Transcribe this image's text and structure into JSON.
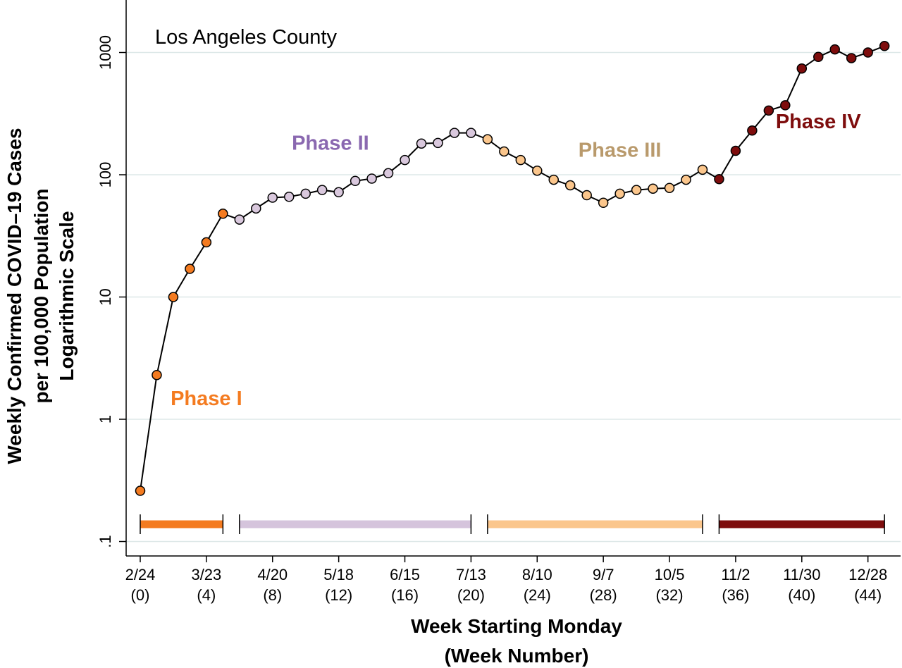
{
  "chart_data": {
    "type": "line",
    "title": "Los Angeles County",
    "xlabel": "Week Starting Monday",
    "xlabel_sub": "(Week Number)",
    "ylabel": [
      "Weekly Confirmed COVID–19 Cases",
      "per 100,000 Population",
      "Logarithmic Scale"
    ],
    "y_scale": "log",
    "ylim": [
      0.1,
      1900
    ],
    "xlim": [
      -0.5,
      46
    ],
    "grid": "horizontal",
    "line_color": "#000000",
    "y_ticks": [
      {
        "value": 0.1,
        "label": ".1"
      },
      {
        "value": 1,
        "label": "1"
      },
      {
        "value": 10,
        "label": "10"
      },
      {
        "value": 100,
        "label": "100"
      },
      {
        "value": 1000,
        "label": "1000"
      }
    ],
    "x_ticks": [
      {
        "week": 0,
        "date": "2/24",
        "num": "(0)"
      },
      {
        "week": 4,
        "date": "3/23",
        "num": "(4)"
      },
      {
        "week": 8,
        "date": "4/20",
        "num": "(8)"
      },
      {
        "week": 12,
        "date": "5/18",
        "num": "(12)"
      },
      {
        "week": 16,
        "date": "6/15",
        "num": "(16)"
      },
      {
        "week": 20,
        "date": "7/13",
        "num": "(20)"
      },
      {
        "week": 24,
        "date": "8/10",
        "num": "(24)"
      },
      {
        "week": 28,
        "date": "9/7",
        "num": "(28)"
      },
      {
        "week": 32,
        "date": "10/5",
        "num": "(32)"
      },
      {
        "week": 36,
        "date": "11/2",
        "num": "(36)"
      },
      {
        "week": 40,
        "date": "11/30",
        "num": "(40)"
      },
      {
        "week": 44,
        "date": "12/28",
        "num": "(44)"
      }
    ],
    "phases": [
      {
        "name": "Phase I",
        "color": "#f47b20",
        "marker_color": "#f47b20",
        "weeks": [
          0,
          5
        ],
        "label_week": 4,
        "label_value": 1.3
      },
      {
        "name": "Phase II",
        "color": "#8a68b0",
        "marker_color": "#d9c8dd",
        "bar_color": "#d5c4dc",
        "weeks": [
          6,
          20
        ],
        "label_week": 11.5,
        "label_value": 160
      },
      {
        "name": "Phase III",
        "color": "#b99a6c",
        "marker_color": "#fbc68c",
        "bar_color": "#fbc68c",
        "weeks": [
          21,
          34
        ],
        "label_week": 29,
        "label_value": 140
      },
      {
        "name": "Phase IV",
        "color": "#7e0d0d",
        "marker_color": "#7e0d0d",
        "bar_color": "#7e0d0d",
        "weeks": [
          35,
          45
        ],
        "label_week": 41,
        "label_value": 240
      }
    ],
    "series": [
      {
        "x": [
          0,
          1,
          2,
          3,
          4,
          5,
          6,
          7,
          8,
          9,
          10,
          11,
          12,
          13,
          14,
          15,
          16,
          17,
          18,
          19,
          20,
          21,
          22,
          23,
          24,
          25,
          26,
          27,
          28,
          29,
          30,
          31,
          32,
          33,
          34,
          35,
          36,
          37,
          38,
          39,
          40,
          41,
          42,
          43,
          44,
          45
        ],
        "y": [
          0.26,
          2.3,
          10,
          17,
          28,
          48,
          43,
          53,
          65,
          66,
          70,
          75,
          72,
          89,
          93,
          103,
          132,
          180,
          182,
          220,
          220,
          195,
          155,
          132,
          108,
          91,
          82,
          68,
          59,
          70,
          75,
          77,
          78,
          91,
          110,
          92,
          157,
          230,
          335,
          370,
          740,
          920,
          1060,
          900,
          1000,
          1130
        ]
      }
    ]
  }
}
